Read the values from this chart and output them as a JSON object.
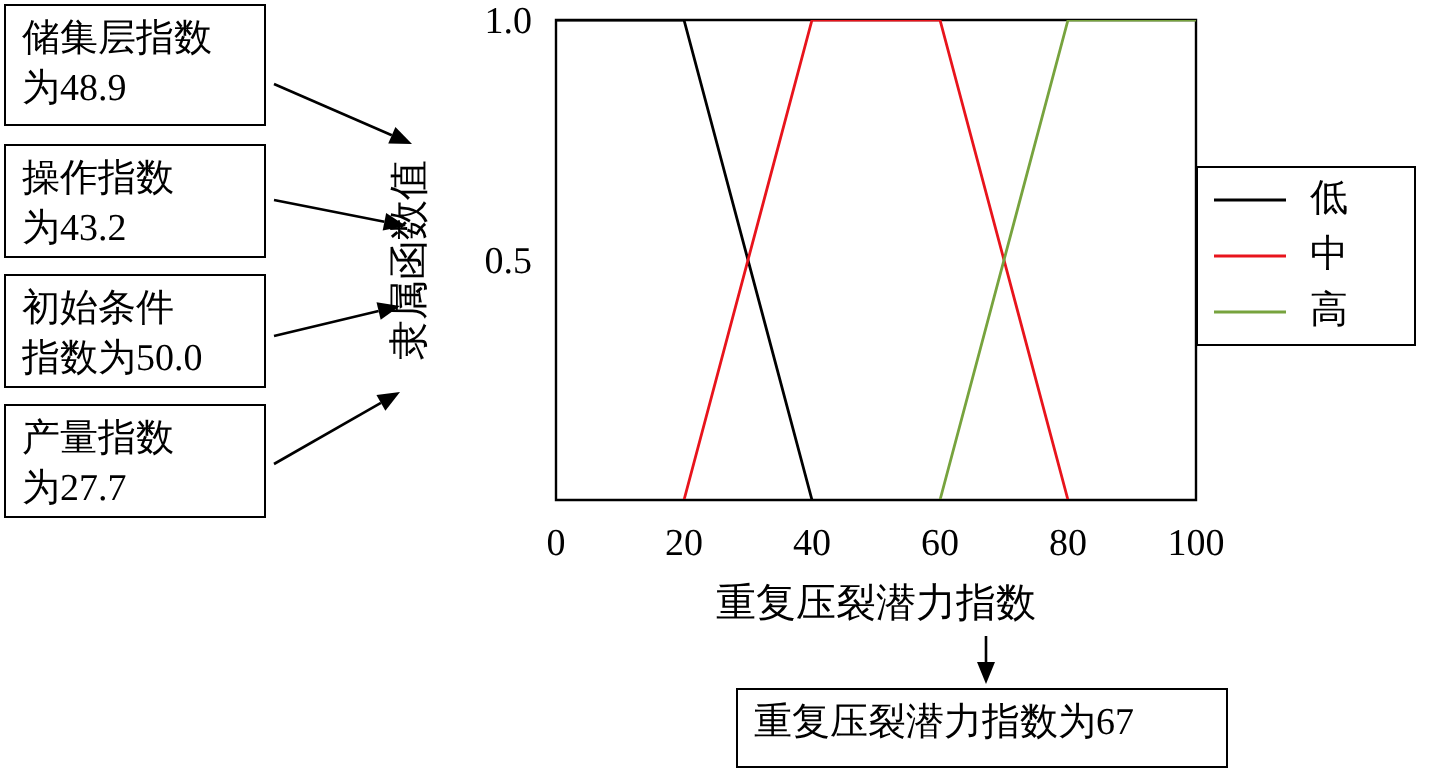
{
  "chart_data": {
    "type": "line",
    "xlabel": "重复压裂潜力指数",
    "ylabel": "隶属函数值",
    "series": [
      {
        "name": "低",
        "color": "#000000",
        "x": [
          0,
          20,
          40
        ],
        "values": [
          1,
          1,
          0
        ]
      },
      {
        "name": "中",
        "color": "#e8141c",
        "x": [
          20,
          40,
          60,
          80
        ],
        "values": [
          0,
          1,
          1,
          0
        ]
      },
      {
        "name": "高",
        "color": "#77a33e",
        "x": [
          60,
          80,
          100
        ],
        "values": [
          0,
          1,
          1
        ]
      }
    ],
    "xlim": [
      0,
      100
    ],
    "xticks": [
      0,
      20,
      40,
      60,
      80,
      100
    ],
    "ylim": [
      0,
      1
    ],
    "yticks": [
      {
        "value": 0.5,
        "label": "0.5"
      },
      {
        "value": 1,
        "label": "1.0"
      }
    ],
    "legend": "right",
    "marker": "none",
    "line_style": "solid",
    "annotations": [
      "储集层指数为48.9",
      "操作指数为43.2",
      "初始条件指数为50.0",
      "产量指数为27.7",
      "重复压裂潜力指数为67"
    ]
  }
}
